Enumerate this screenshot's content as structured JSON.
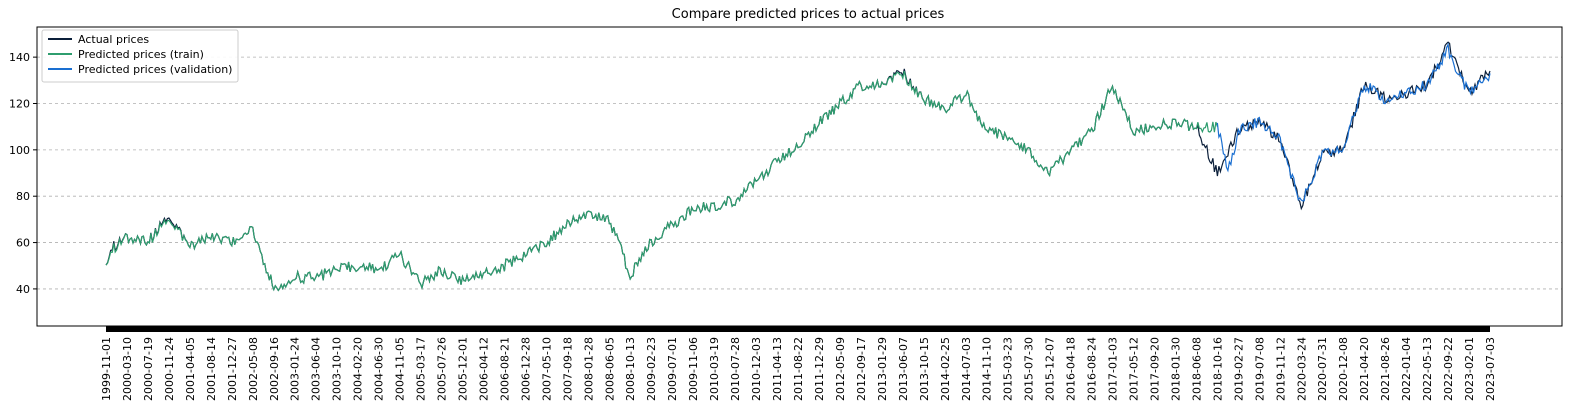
{
  "chart_data": {
    "type": "line",
    "title": "Compare predicted prices to actual prices",
    "xlabel": "",
    "ylabel": "",
    "ylim": [
      24,
      153
    ],
    "yticks": [
      40,
      60,
      80,
      100,
      120,
      140
    ],
    "grid": "y-dashed",
    "legend": "top-left",
    "xticks": [
      "1999-11-01",
      "2000-03-10",
      "2000-07-19",
      "2000-11-24",
      "2001-04-05",
      "2001-08-14",
      "2001-12-27",
      "2002-05-08",
      "2002-09-16",
      "2003-01-24",
      "2003-06-04",
      "2003-10-10",
      "2004-02-20",
      "2004-06-30",
      "2004-11-05",
      "2005-03-17",
      "2005-07-26",
      "2005-12-01",
      "2006-04-12",
      "2006-08-21",
      "2006-12-28",
      "2007-05-10",
      "2007-09-18",
      "2008-01-28",
      "2008-06-05",
      "2008-10-13",
      "2009-02-23",
      "2009-07-01",
      "2009-11-06",
      "2010-03-19",
      "2010-07-28",
      "2010-12-03",
      "2011-04-13",
      "2011-08-22",
      "2011-12-29",
      "2012-05-09",
      "2012-09-17",
      "2013-01-29",
      "2013-06-07",
      "2013-10-15",
      "2014-02-25",
      "2014-07-03",
      "2014-11-10",
      "2015-03-23",
      "2015-07-30",
      "2015-12-07",
      "2016-04-18",
      "2016-08-24",
      "2017-01-03",
      "2017-05-12",
      "2017-09-20",
      "2018-01-30",
      "2018-06-08",
      "2018-10-16",
      "2019-02-27",
      "2019-07-08",
      "2019-11-12",
      "2020-03-24",
      "2020-07-31",
      "2020-12-08",
      "2021-04-20",
      "2021-08-26",
      "2022-01-04",
      "2022-05-13",
      "2022-09-22",
      "2023-02-01",
      "2023-07-03"
    ],
    "series": [
      {
        "name": "Actual prices",
        "color": "#0b1f3a"
      },
      {
        "name": "Predicted prices (train)",
        "color": "#2e9d6e"
      },
      {
        "name": "Predicted prices (validation)",
        "color": "#1a6fd1"
      }
    ],
    "actual_values": [
      [
        0,
        50
      ],
      [
        0.3,
        58
      ],
      [
        1,
        62
      ],
      [
        2,
        60
      ],
      [
        3,
        72
      ],
      [
        4,
        58
      ],
      [
        5,
        62
      ],
      [
        6,
        60
      ],
      [
        7,
        66
      ],
      [
        8,
        40
      ],
      [
        9,
        45
      ],
      [
        10,
        45
      ],
      [
        11,
        48
      ],
      [
        12,
        50
      ],
      [
        13,
        48
      ],
      [
        14,
        55
      ],
      [
        15,
        42
      ],
      [
        16,
        48
      ],
      [
        17,
        44
      ],
      [
        18,
        47
      ],
      [
        19,
        50
      ],
      [
        20,
        55
      ],
      [
        21,
        60
      ],
      [
        22,
        68
      ],
      [
        23,
        72
      ],
      [
        24,
        70
      ],
      [
        25,
        46
      ],
      [
        26,
        60
      ],
      [
        27,
        68
      ],
      [
        28,
        74
      ],
      [
        29,
        76
      ],
      [
        30,
        78
      ],
      [
        31,
        86
      ],
      [
        32,
        95
      ],
      [
        33,
        102
      ],
      [
        34,
        112
      ],
      [
        35,
        120
      ],
      [
        36,
        128
      ],
      [
        37,
        128
      ],
      [
        38,
        134
      ],
      [
        39,
        122
      ],
      [
        40,
        118
      ],
      [
        41,
        124
      ],
      [
        42,
        108
      ],
      [
        43,
        106
      ],
      [
        44,
        100
      ],
      [
        45,
        90
      ],
      [
        46,
        100
      ],
      [
        47,
        108
      ],
      [
        48,
        128
      ],
      [
        49,
        108
      ],
      [
        50,
        110
      ],
      [
        51,
        112
      ],
      [
        52,
        110
      ],
      [
        53,
        90
      ],
      [
        54,
        108
      ],
      [
        55,
        112
      ],
      [
        56,
        104
      ],
      [
        57,
        76
      ],
      [
        58,
        98
      ],
      [
        59,
        100
      ],
      [
        60,
        128
      ],
      [
        61,
        122
      ],
      [
        62,
        124
      ],
      [
        63,
        128
      ],
      [
        64,
        146
      ],
      [
        65,
        124
      ],
      [
        66,
        134
      ]
    ],
    "predicted_train_values": [
      [
        0,
        50
      ],
      [
        0.3,
        57
      ],
      [
        1,
        62
      ],
      [
        2,
        60
      ],
      [
        3,
        71
      ],
      [
        4,
        58
      ],
      [
        5,
        62
      ],
      [
        6,
        60
      ],
      [
        7,
        66
      ],
      [
        8,
        40
      ],
      [
        9,
        45
      ],
      [
        10,
        45
      ],
      [
        11,
        48
      ],
      [
        12,
        50
      ],
      [
        13,
        48
      ],
      [
        14,
        55
      ],
      [
        15,
        42
      ],
      [
        16,
        48
      ],
      [
        17,
        44
      ],
      [
        18,
        47
      ],
      [
        19,
        50
      ],
      [
        20,
        55
      ],
      [
        21,
        60
      ],
      [
        22,
        68
      ],
      [
        23,
        72
      ],
      [
        24,
        70
      ],
      [
        25,
        46
      ],
      [
        26,
        60
      ],
      [
        27,
        68
      ],
      [
        28,
        74
      ],
      [
        29,
        76
      ],
      [
        30,
        78
      ],
      [
        31,
        86
      ],
      [
        32,
        95
      ],
      [
        33,
        102
      ],
      [
        34,
        112
      ],
      [
        35,
        120
      ],
      [
        36,
        128
      ],
      [
        37,
        128
      ],
      [
        38,
        133
      ],
      [
        39,
        122
      ],
      [
        40,
        118
      ],
      [
        41,
        124
      ],
      [
        42,
        108
      ],
      [
        43,
        106
      ],
      [
        44,
        100
      ],
      [
        45,
        90
      ],
      [
        46,
        100
      ],
      [
        47,
        108
      ],
      [
        48,
        128
      ],
      [
        49,
        108
      ],
      [
        50,
        110
      ],
      [
        51,
        112
      ],
      [
        52,
        110
      ],
      [
        53,
        110
      ]
    ],
    "predicted_validation_values": [
      [
        53,
        110
      ],
      [
        53.5,
        90
      ],
      [
        54,
        108
      ],
      [
        55,
        112
      ],
      [
        56,
        104
      ],
      [
        57,
        76
      ],
      [
        58,
        98
      ],
      [
        59,
        100
      ],
      [
        60,
        128
      ],
      [
        61,
        122
      ],
      [
        62,
        124
      ],
      [
        63,
        128
      ],
      [
        64,
        143
      ],
      [
        65,
        124
      ],
      [
        66,
        133
      ]
    ]
  }
}
